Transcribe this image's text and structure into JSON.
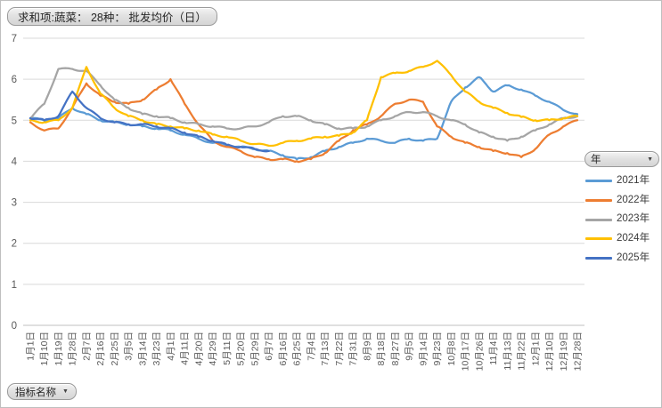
{
  "pivot": {
    "value_field_label": "求和项:蔬菜： 28种： 批发均价（日）",
    "legend_field_label": "年",
    "axis_field_label": "指标名称",
    "dropdown_arrow": "▼"
  },
  "colors": {
    "gridline": "#d9d9d9",
    "axis_line": "#bfbfbf",
    "tick_label": "#595959",
    "legend_text": "#3b3b3b"
  },
  "chart_data": {
    "type": "line",
    "title": "求和项:蔬菜： 28种： 批发均价（日）",
    "xlabel": "",
    "ylabel": "",
    "ylim": [
      0,
      7
    ],
    "ytick_interval": 1,
    "grid": true,
    "legend_position": "right",
    "categories": [
      "1月1日",
      "1月10日",
      "1月19日",
      "1月28日",
      "2月7日",
      "2月16日",
      "2月25日",
      "3月5日",
      "3月14日",
      "3月23日",
      "4月1日",
      "4月11日",
      "4月20日",
      "4月29日",
      "5月11日",
      "5月20日",
      "5月29日",
      "6月7日",
      "6月16日",
      "6月25日",
      "7月4日",
      "7月13日",
      "7月22日",
      "7月31日",
      "8月9日",
      "8月18日",
      "8月27日",
      "9月5日",
      "9月14日",
      "9月23日",
      "10月8日",
      "10月17日",
      "10月26日",
      "11月4日",
      "11月13日",
      "11月22日",
      "12月1日",
      "12月10日",
      "12月19日",
      "12月28日"
    ],
    "series": [
      {
        "name": "2021年",
        "color": "#5B9BD5",
        "values": [
          5.05,
          5.0,
          5.05,
          5.3,
          5.15,
          5.0,
          4.95,
          4.9,
          4.85,
          4.8,
          4.75,
          4.65,
          4.55,
          4.45,
          4.4,
          4.35,
          4.3,
          4.25,
          4.15,
          4.05,
          4.1,
          4.25,
          4.35,
          4.45,
          4.55,
          4.5,
          4.45,
          4.55,
          4.5,
          4.55,
          5.45,
          5.8,
          6.05,
          5.7,
          5.85,
          5.75,
          5.6,
          5.45,
          5.25,
          5.15
        ]
      },
      {
        "name": "2022年",
        "color": "#ED7D31",
        "values": [
          4.95,
          4.75,
          4.8,
          5.3,
          5.9,
          5.6,
          5.45,
          5.4,
          5.5,
          5.75,
          6.0,
          5.4,
          4.9,
          4.5,
          4.35,
          4.25,
          4.1,
          4.05,
          4.05,
          4.0,
          4.05,
          4.2,
          4.5,
          4.75,
          4.9,
          5.1,
          5.4,
          5.5,
          5.45,
          4.85,
          4.6,
          4.45,
          4.35,
          4.25,
          4.2,
          4.1,
          4.3,
          4.65,
          4.85,
          5.0
        ]
      },
      {
        "name": "2023年",
        "color": "#A5A5A5",
        "values": [
          5.05,
          5.4,
          6.25,
          6.25,
          6.2,
          5.85,
          5.5,
          5.3,
          5.15,
          5.1,
          5.05,
          4.95,
          4.9,
          4.85,
          4.8,
          4.8,
          4.85,
          4.95,
          5.1,
          5.1,
          5.0,
          4.9,
          4.8,
          4.8,
          4.85,
          5.0,
          5.1,
          5.2,
          5.2,
          5.1,
          5.0,
          4.9,
          4.7,
          4.6,
          4.5,
          4.6,
          4.75,
          4.9,
          5.05,
          5.1
        ]
      },
      {
        "name": "2024年",
        "color": "#FFC000",
        "values": [
          5.0,
          4.95,
          5.0,
          5.3,
          6.3,
          5.65,
          5.3,
          5.1,
          5.0,
          4.9,
          4.85,
          4.8,
          4.75,
          4.65,
          4.6,
          4.5,
          4.42,
          4.38,
          4.45,
          4.5,
          4.55,
          4.6,
          4.62,
          4.7,
          5.0,
          6.05,
          6.15,
          6.2,
          6.3,
          6.45,
          6.1,
          5.7,
          5.45,
          5.3,
          5.18,
          5.08,
          5.0,
          5.0,
          5.05,
          5.1
        ]
      },
      {
        "name": "2025年",
        "color": "#4472C4",
        "values": [
          5.05,
          5.0,
          5.1,
          5.7,
          5.3,
          5.05,
          4.95,
          4.9,
          4.9,
          4.85,
          4.8,
          4.7,
          4.6,
          4.5,
          4.4,
          4.35,
          4.3,
          4.25,
          null,
          null,
          null,
          null,
          null,
          null,
          null,
          null,
          null,
          null,
          null,
          null,
          null,
          null,
          null,
          null,
          null,
          null,
          null,
          null,
          null,
          null
        ]
      }
    ]
  }
}
